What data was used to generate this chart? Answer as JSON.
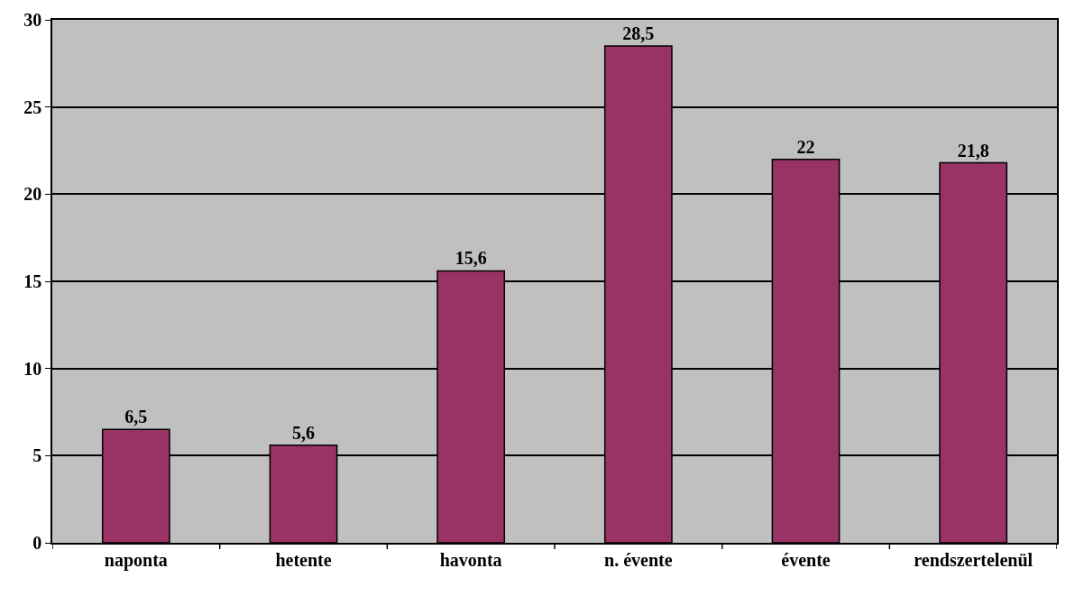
{
  "chart_data": {
    "type": "bar",
    "categories": [
      "naponta",
      "hetente",
      "havonta",
      "n. évente",
      "évente",
      "rendszertelenül"
    ],
    "values": [
      6.5,
      5.6,
      15.6,
      28.5,
      22,
      21.8
    ],
    "value_labels": [
      "6,5",
      "5,6",
      "15,6",
      "28,5",
      "22",
      "21,8"
    ],
    "color": "#993366",
    "ylim": [
      0,
      30
    ],
    "yticks": [
      0,
      5,
      10,
      15,
      20,
      25,
      30
    ],
    "grid": "y",
    "legend": false
  }
}
